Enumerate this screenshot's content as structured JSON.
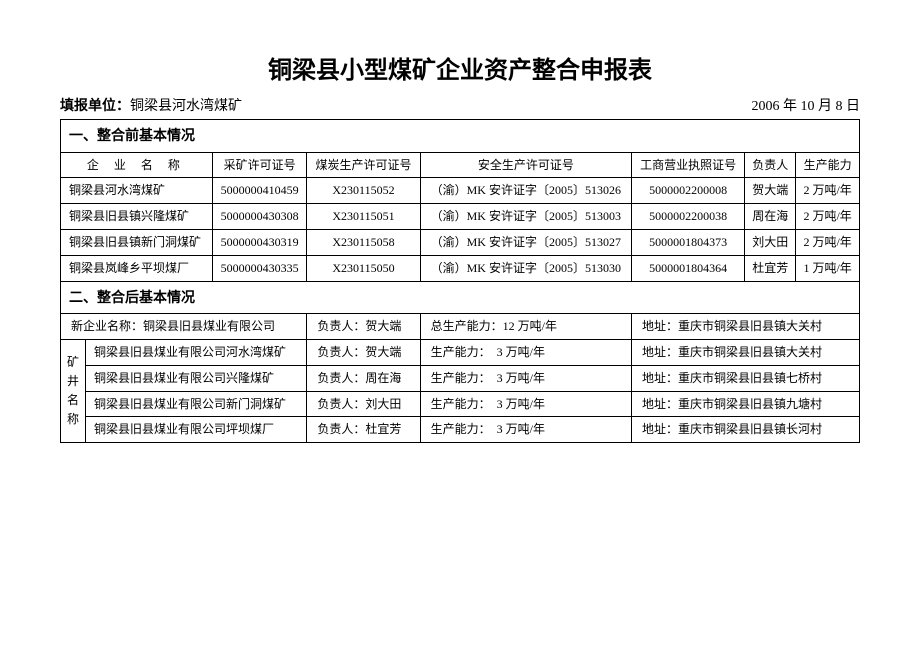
{
  "title": "铜梁县小型煤矿企业资产整合申报表",
  "reporting_unit_label": "填报单位：",
  "reporting_unit": "铜梁县河水湾煤矿",
  "date": "2006 年 10 月 8 日",
  "section1": {
    "heading": "一、整合前基本情况",
    "columns": {
      "name": "企 业 名 称",
      "mining_license": "采矿许可证号",
      "coal_license": "煤炭生产许可证号",
      "safety_license": "安全生产许可证号",
      "business_license": "工商营业执照证号",
      "leader": "负责人",
      "capacity": "生产能力"
    },
    "rows": [
      {
        "name": "铜梁县河水湾煤矿",
        "mining_license": "5000000410459",
        "coal_license": "X230115052",
        "safety_license": "（渝）MK 安许证字〔2005〕513026",
        "business_license": "5000002200008",
        "leader": "贺大端",
        "capacity": "2 万吨/年"
      },
      {
        "name": "铜梁县旧县镇兴隆煤矿",
        "mining_license": "5000000430308",
        "coal_license": "X230115051",
        "safety_license": "（渝）MK 安许证字〔2005〕513003",
        "business_license": "5000002200038",
        "leader": "周在海",
        "capacity": "2 万吨/年"
      },
      {
        "name": "铜梁县旧县镇新门洞煤矿",
        "mining_license": "5000000430319",
        "coal_license": "X230115058",
        "safety_license": "（渝）MK 安许证字〔2005〕513027",
        "business_license": "5000001804373",
        "leader": "刘大田",
        "capacity": "2 万吨/年"
      },
      {
        "name": "铜梁县岚峰乡平坝煤厂",
        "mining_license": "5000000430335",
        "coal_license": "X230115050",
        "safety_license": "（渝）MK 安许证字〔2005〕513030",
        "business_license": "5000001804364",
        "leader": "杜宜芳",
        "capacity": "1 万吨/年"
      }
    ]
  },
  "section2": {
    "heading": "二、整合后基本情况",
    "new_company_label": "新企业名称：",
    "new_company": "铜梁县旧县煤业有限公司",
    "leader_label": "负责人：",
    "new_leader": "贺大端",
    "total_capacity_label": "总生产能力：",
    "total_capacity": "12 万吨/年",
    "address_label": "地址：",
    "new_address": "重庆市铜梁县旧县镇大关村",
    "mine_label": "矿井名称",
    "capacity_label": "生产能力：",
    "mines": [
      {
        "name": "铜梁县旧县煤业有限公司河水湾煤矿",
        "leader": "贺大端",
        "capacity": "3 万吨/年",
        "address": "重庆市铜梁县旧县镇大关村"
      },
      {
        "name": "铜梁县旧县煤业有限公司兴隆煤矿",
        "leader": "周在海",
        "capacity": "3 万吨/年",
        "address": "重庆市铜梁县旧县镇七桥村"
      },
      {
        "name": "铜梁县旧县煤业有限公司新门洞煤矿",
        "leader": "刘大田",
        "capacity": "3 万吨/年",
        "address": "重庆市铜梁县旧县镇九塘村"
      },
      {
        "name": "铜梁县旧县煤业有限公司坪坝煤厂",
        "leader": "杜宜芳",
        "capacity": "3 万吨/年",
        "address": "重庆市铜梁县旧县镇长河村"
      }
    ]
  }
}
